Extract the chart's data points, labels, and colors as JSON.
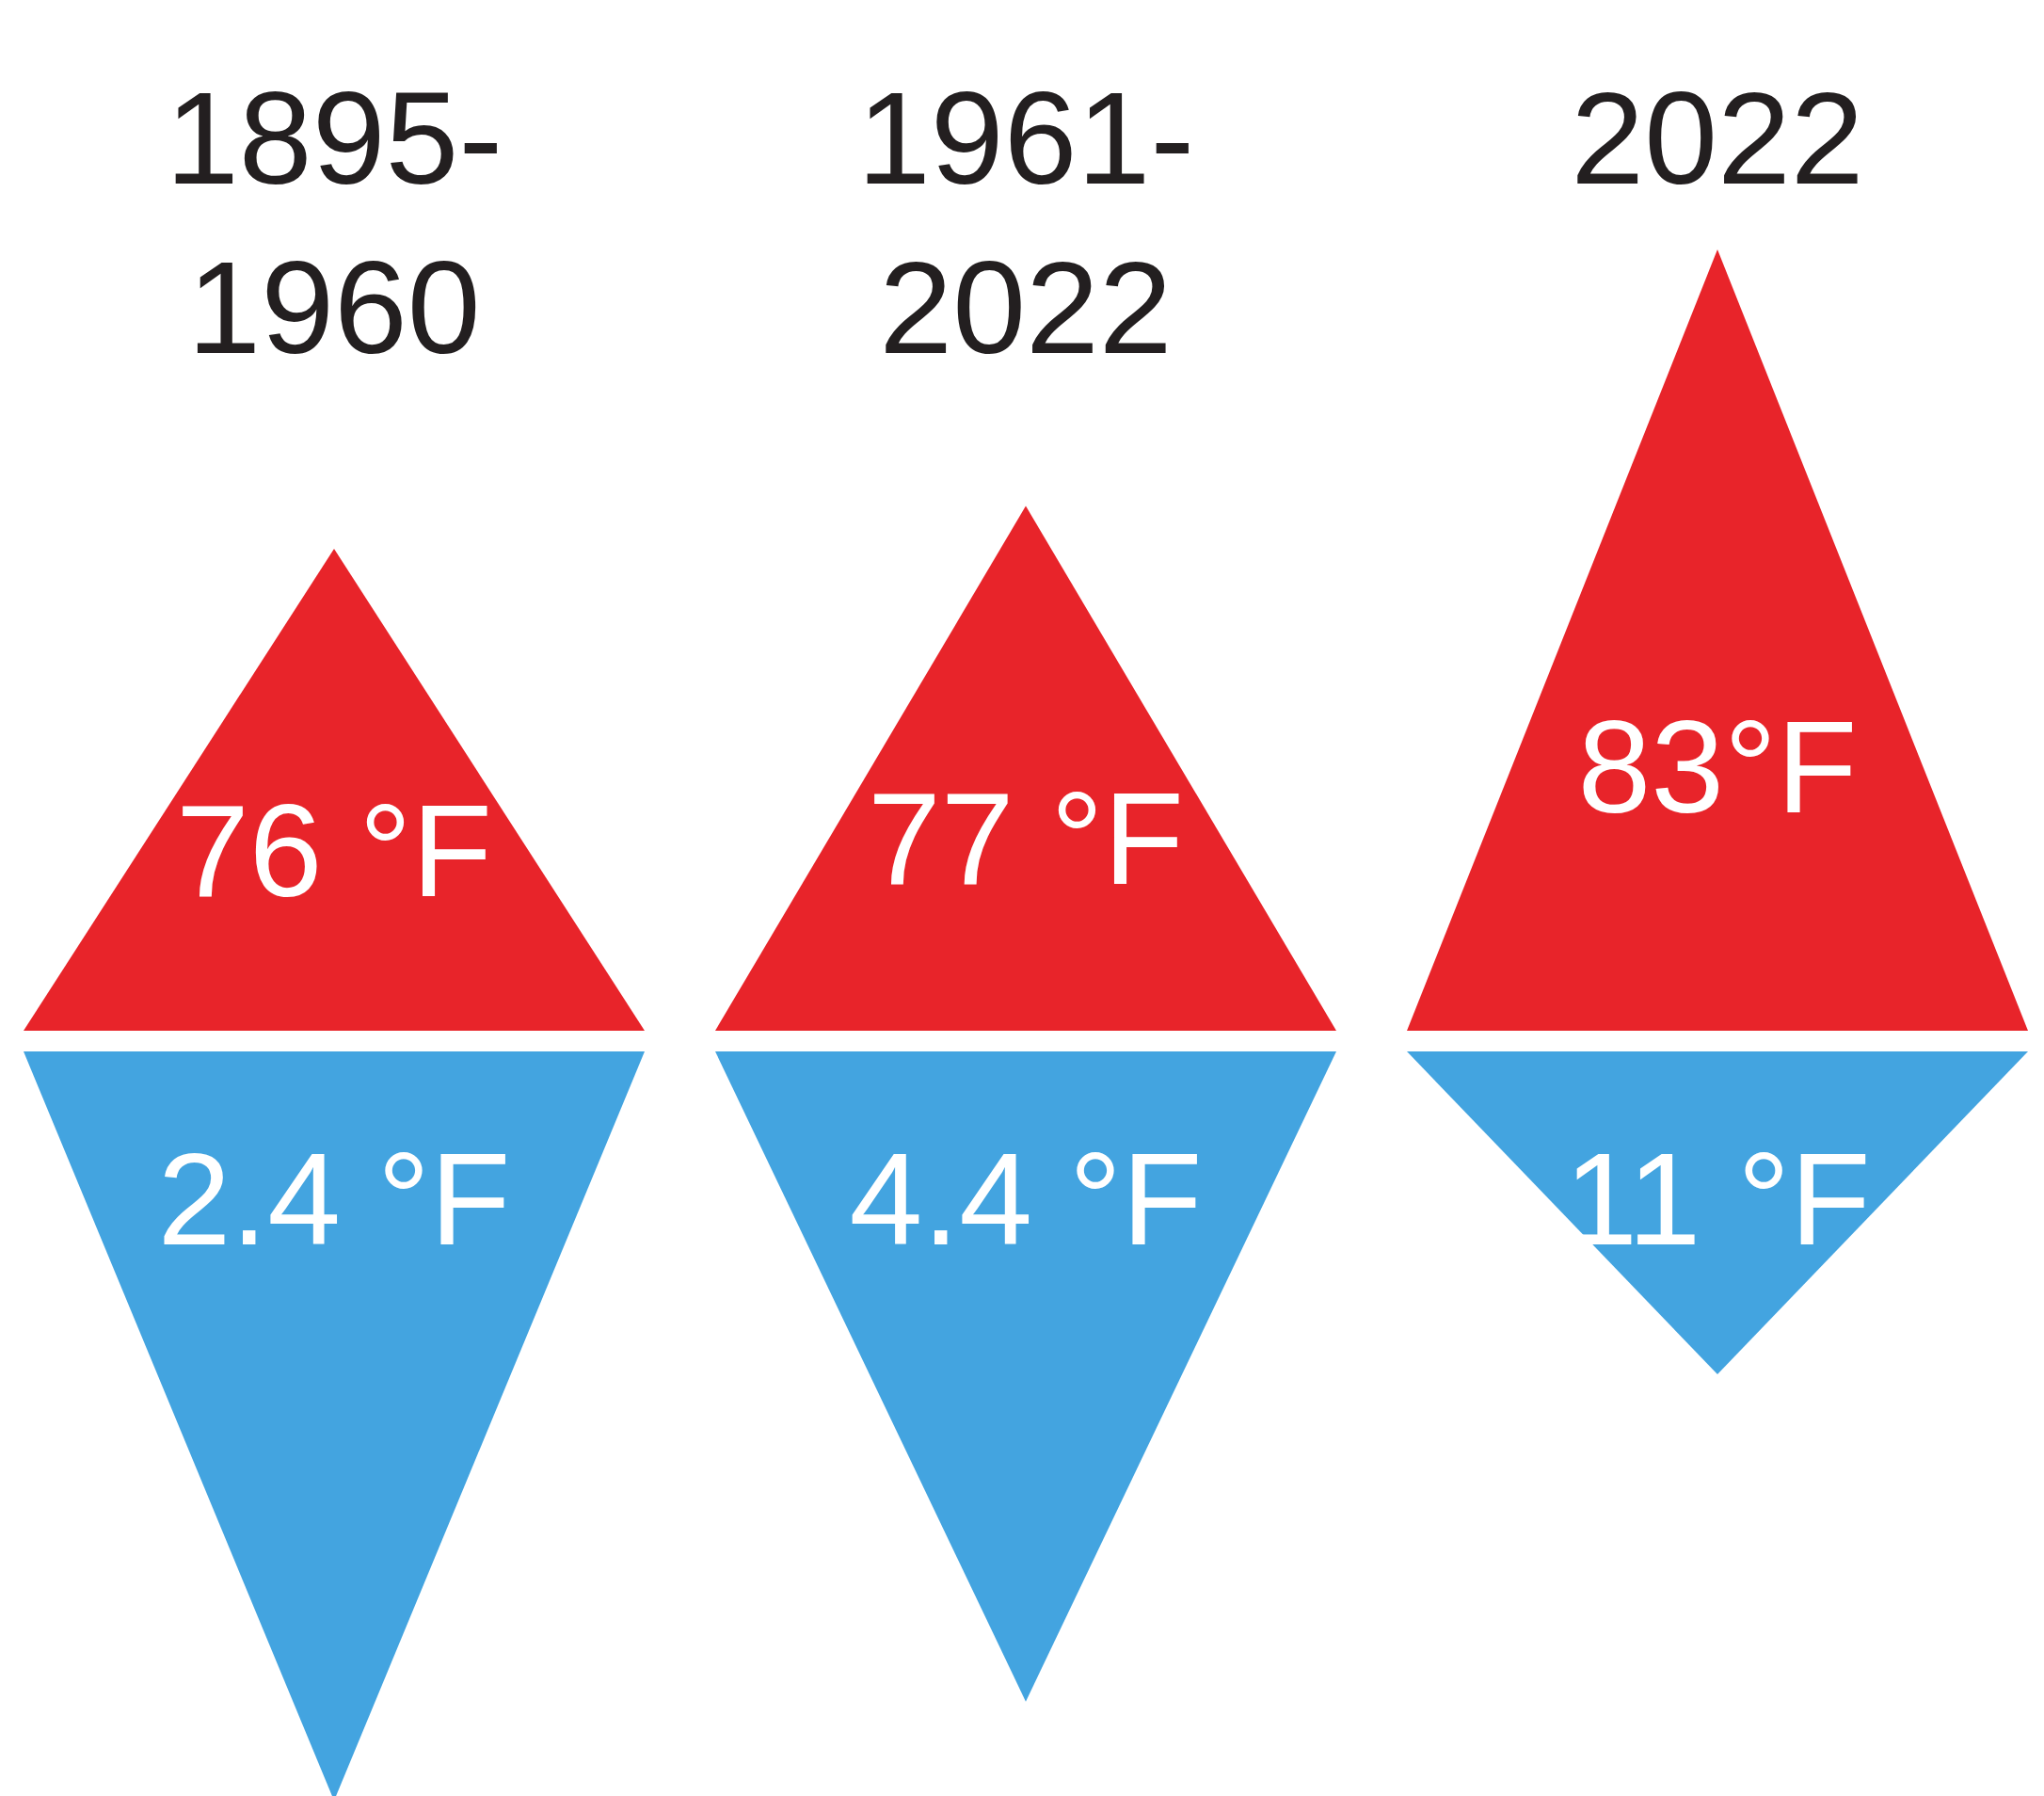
{
  "chart_data": {
    "type": "other",
    "categories": [
      "1895-1960",
      "1961-2022",
      "2022"
    ],
    "series": [
      {
        "color": "#e8242a",
        "values": [
          76,
          77,
          83
        ],
        "value_labels": [
          "76 °F",
          "77 °F",
          "83°F"
        ]
      },
      {
        "color": "#43a4e0",
        "values": [
          2.4,
          4.4,
          11
        ],
        "value_labels": [
          "2.4 °F",
          "4.4 °F",
          "11 °F"
        ]
      }
    ]
  }
}
